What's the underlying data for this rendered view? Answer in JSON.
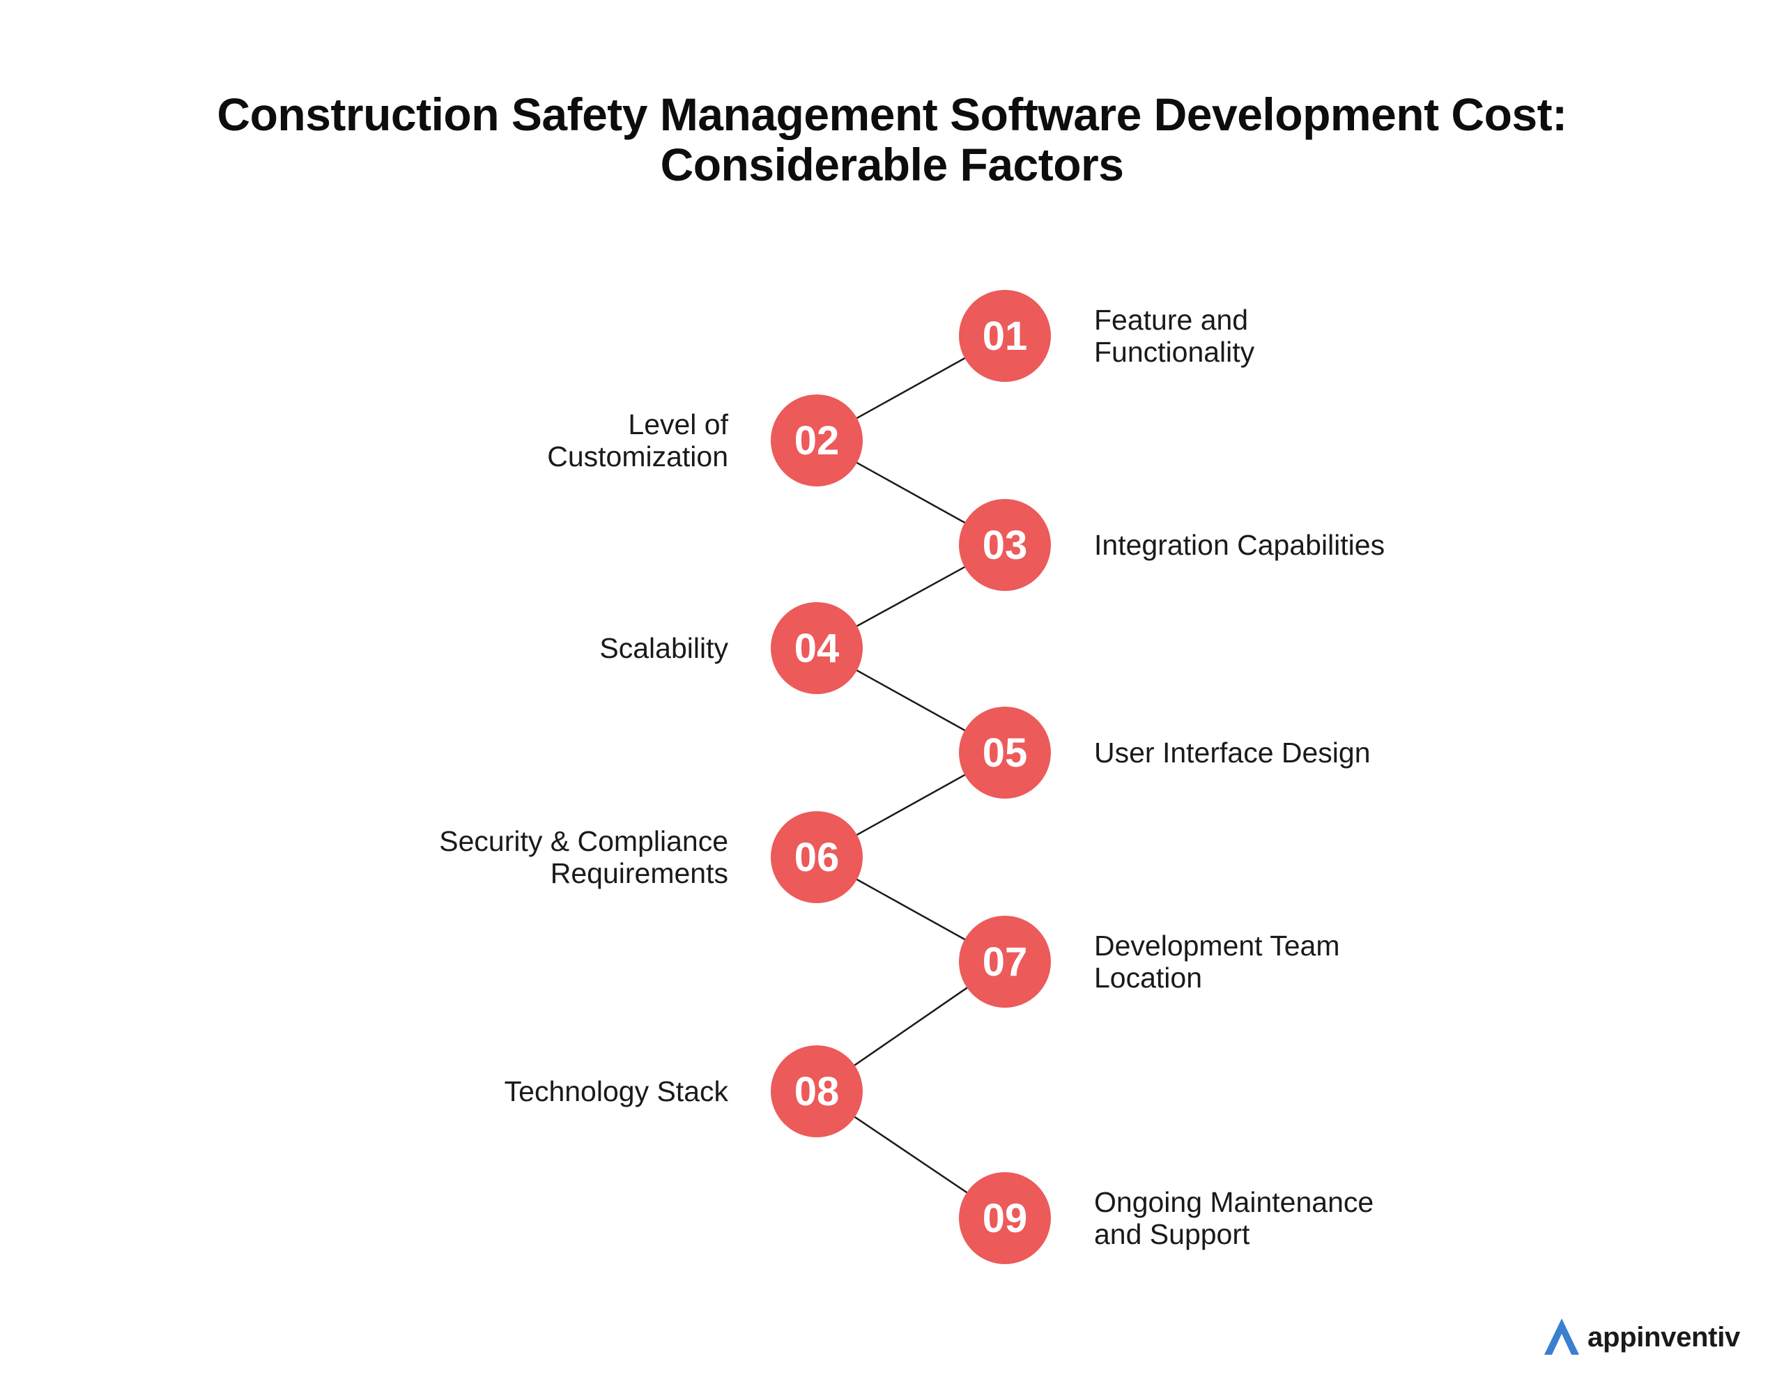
{
  "title": {
    "line1": "Construction Safety Management Software Development Cost:",
    "line2": "Considerable Factors"
  },
  "colors": {
    "circle": "#ec5a5a",
    "connector": "#1a1a1a",
    "logo_accent": "#3b7fd1"
  },
  "steps": [
    {
      "number": "01",
      "label": "Feature and\nFunctionality",
      "side": "right"
    },
    {
      "number": "02",
      "label": "Level of\nCustomization",
      "side": "left"
    },
    {
      "number": "03",
      "label": "Integration Capabilities",
      "side": "right"
    },
    {
      "number": "04",
      "label": "Scalability",
      "side": "left"
    },
    {
      "number": "05",
      "label": "User Interface Design",
      "side": "right"
    },
    {
      "number": "06",
      "label": "Security & Compliance\nRequirements",
      "side": "left"
    },
    {
      "number": "07",
      "label": "Development Team\nLocation",
      "side": "right"
    },
    {
      "number": "08",
      "label": "Technology Stack",
      "side": "left"
    },
    {
      "number": "09",
      "label": "Ongoing Maintenance\nand Support",
      "side": "right"
    }
  ],
  "logo": {
    "text": "appinventiv",
    "icon": "appinventiv-a-icon"
  }
}
